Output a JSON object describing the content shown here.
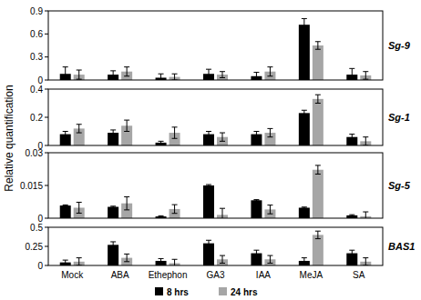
{
  "chart_data": [
    {
      "type": "bar",
      "title": "Sg-9",
      "y_label": "Relative quantification",
      "categories": [
        "Mock",
        "ABA",
        "Ethephon",
        "GA3",
        "IAA",
        "MeJA",
        "SA"
      ],
      "series": [
        {
          "color": "#000000",
          "values": [
            0.08,
            0.07,
            0.03,
            0.08,
            0.05,
            0.72,
            0.07
          ],
          "errors": [
            0.09,
            0.05,
            0.05,
            0.06,
            0.05,
            0.08,
            0.08
          ]
        },
        {
          "color": "#a6a6a6",
          "values": [
            0.07,
            0.11,
            0.04,
            0.07,
            0.11,
            0.45,
            0.06
          ],
          "errors": [
            0.06,
            0.06,
            0.04,
            0.04,
            0.06,
            0.05,
            0.05
          ]
        }
      ],
      "ylim": [
        0,
        0.9
      ],
      "yticks": [
        0,
        0.3,
        0.6,
        0.9
      ],
      "tick_labels": "y"
    },
    {
      "type": "bar",
      "title": "Sg-1",
      "categories": [
        "Mock",
        "ABA",
        "Ethephon",
        "GA3",
        "IAA",
        "MeJA",
        "SA"
      ],
      "series": [
        {
          "color": "#000000",
          "values": [
            0.08,
            0.09,
            0.02,
            0.08,
            0.08,
            0.23,
            0.06
          ],
          "errors": [
            0.02,
            0.02,
            0.01,
            0.02,
            0.02,
            0.02,
            0.02
          ]
        },
        {
          "color": "#a6a6a6",
          "values": [
            0.12,
            0.14,
            0.09,
            0.06,
            0.09,
            0.33,
            0.03
          ],
          "errors": [
            0.03,
            0.04,
            0.04,
            0.03,
            0.03,
            0.03,
            0.03
          ]
        }
      ],
      "ylim": [
        0,
        0.4
      ],
      "yticks": [
        0,
        0.2,
        0.4
      ],
      "tick_labels": "y"
    },
    {
      "type": "bar",
      "title": "Sg-5",
      "categories": [
        "Mock",
        "ABA",
        "Ethephon",
        "GA3",
        "IAA",
        "MeJA",
        "SA"
      ],
      "series": [
        {
          "color": "#000000",
          "values": [
            0.0058,
            0.0052,
            0.0008,
            0.015,
            0.0082,
            0.0048,
            0.0013
          ],
          "errors": [
            0.0003,
            0.0003,
            0.0003,
            0.0004,
            0.0003,
            0.0003,
            0.0003
          ]
        },
        {
          "color": "#a6a6a6",
          "values": [
            0.0048,
            0.0068,
            0.0042,
            0.0015,
            0.004,
            0.0222,
            0.0009
          ],
          "errors": [
            0.0025,
            0.003,
            0.002,
            0.003,
            0.002,
            0.002,
            0.002
          ]
        }
      ],
      "ylim": [
        0,
        0.03
      ],
      "yticks": [
        0,
        0.015,
        0.03
      ],
      "tick_labels": "y"
    },
    {
      "type": "bar",
      "title": "BAS1",
      "categories": [
        "Mock",
        "ABA",
        "Ethephon",
        "GA3",
        "IAA",
        "MeJA",
        "SA"
      ],
      "series": [
        {
          "name": "8 hrs",
          "color": "#000000",
          "values": [
            0.04,
            0.27,
            0.06,
            0.29,
            0.16,
            0.06,
            0.16
          ],
          "errors": [
            0.03,
            0.04,
            0.03,
            0.04,
            0.04,
            0.04,
            0.04
          ]
        },
        {
          "name": "24 hrs",
          "color": "#a6a6a6",
          "values": [
            0.05,
            0.1,
            0.03,
            0.08,
            0.08,
            0.4,
            0.05
          ],
          "errors": [
            0.05,
            0.05,
            0.05,
            0.05,
            0.05,
            0.05,
            0.05
          ]
        }
      ],
      "ylim": [
        0,
        0.5
      ],
      "yticks": [
        0,
        0.25,
        0.5
      ],
      "tick_labels": true,
      "legend": "bottom"
    }
  ]
}
